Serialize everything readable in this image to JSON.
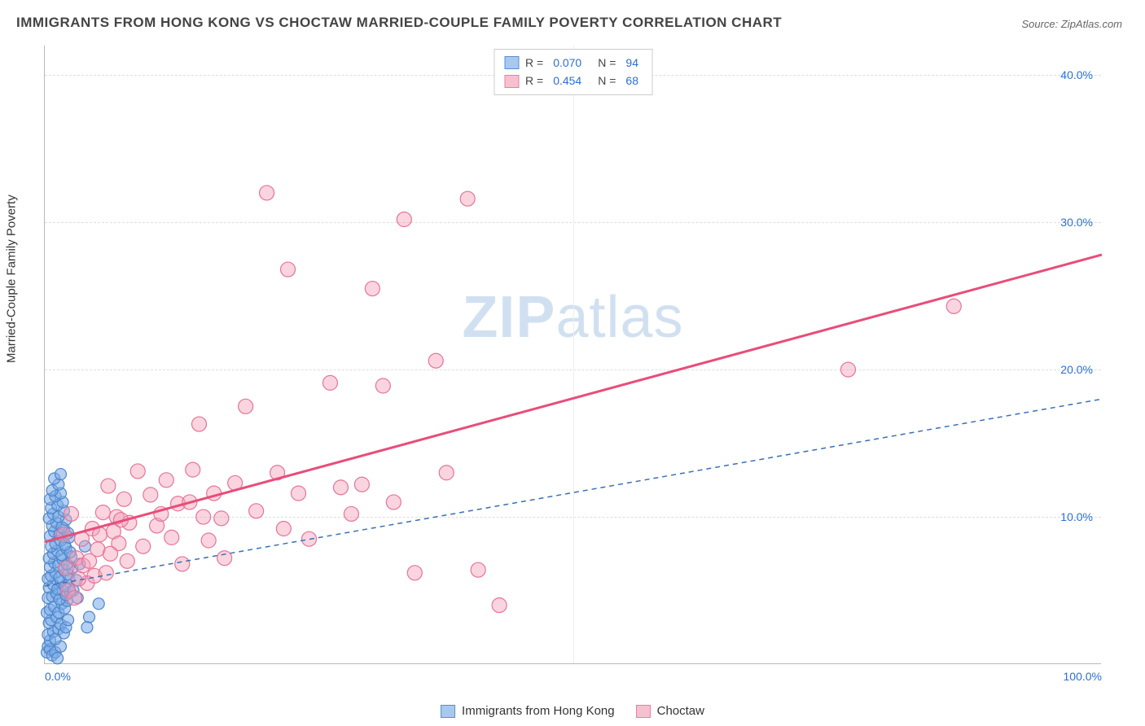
{
  "title": "IMMIGRANTS FROM HONG KONG VS CHOCTAW MARRIED-COUPLE FAMILY POVERTY CORRELATION CHART",
  "source": "Source: ZipAtlas.com",
  "ylabel": "Married-Couple Family Poverty",
  "watermark_strong": "ZIP",
  "watermark_light": "atlas",
  "chart": {
    "type": "scatter-with-regression",
    "background_color": "#ffffff",
    "grid_color": "#dddddd",
    "axis_color": "#bbbbbb",
    "xlim": [
      0,
      100
    ],
    "ylim": [
      0,
      42
    ],
    "xticks": [
      0,
      50,
      100
    ],
    "xtick_labels": [
      "0.0%",
      "",
      "100.0%"
    ],
    "yticks": [
      10,
      20,
      30,
      40
    ],
    "ytick_labels": [
      "10.0%",
      "20.0%",
      "30.0%",
      "40.0%"
    ],
    "tick_color": "#2b6fd6",
    "tick_fontsize": 14,
    "series": [
      {
        "name": "Immigrants from Hong Kong",
        "swatch_fill": "#a9c8ef",
        "swatch_border": "#5a8dd0",
        "marker_fill": "rgba(120,170,230,0.55)",
        "marker_stroke": "#4d86cc",
        "marker_radius": 7,
        "R": "0.070",
        "N": "94",
        "regression": {
          "x1": 0,
          "y1": 5.3,
          "x2": 100,
          "y2": 18.0,
          "color": "#3b6fb5",
          "width": 1.5,
          "dash": "6,5"
        },
        "points": [
          [
            0.2,
            0.8
          ],
          [
            0.3,
            1.2
          ],
          [
            0.5,
            1.0
          ],
          [
            0.7,
            0.6
          ],
          [
            0.5,
            1.6
          ],
          [
            1.0,
            0.8
          ],
          [
            1.2,
            0.4
          ],
          [
            1.5,
            1.2
          ],
          [
            0.3,
            2.0
          ],
          [
            0.8,
            2.2
          ],
          [
            1.0,
            1.7
          ],
          [
            1.3,
            2.4
          ],
          [
            0.4,
            2.8
          ],
          [
            0.6,
            3.0
          ],
          [
            1.1,
            3.2
          ],
          [
            1.5,
            2.7
          ],
          [
            1.8,
            2.1
          ],
          [
            2.0,
            2.5
          ],
          [
            2.2,
            3.0
          ],
          [
            0.2,
            3.5
          ],
          [
            0.5,
            3.7
          ],
          [
            0.9,
            3.9
          ],
          [
            1.3,
            3.5
          ],
          [
            1.6,
            4.1
          ],
          [
            1.9,
            3.8
          ],
          [
            2.1,
            4.3
          ],
          [
            0.3,
            4.5
          ],
          [
            0.7,
            4.6
          ],
          [
            1.1,
            4.8
          ],
          [
            1.4,
            4.4
          ],
          [
            1.7,
            5.0
          ],
          [
            2.0,
            4.7
          ],
          [
            2.4,
            4.9
          ],
          [
            0.4,
            5.2
          ],
          [
            0.8,
            5.4
          ],
          [
            1.2,
            5.1
          ],
          [
            1.5,
            5.6
          ],
          [
            1.9,
            5.3
          ],
          [
            2.3,
            5.8
          ],
          [
            2.7,
            5.0
          ],
          [
            0.3,
            5.8
          ],
          [
            0.6,
            6.0
          ],
          [
            1.0,
            6.2
          ],
          [
            1.4,
            5.9
          ],
          [
            1.8,
            6.4
          ],
          [
            2.2,
            6.1
          ],
          [
            2.6,
            6.5
          ],
          [
            3.0,
            5.7
          ],
          [
            0.5,
            6.6
          ],
          [
            0.9,
            6.9
          ],
          [
            1.3,
            6.7
          ],
          [
            1.7,
            7.1
          ],
          [
            2.1,
            6.8
          ],
          [
            2.5,
            7.3
          ],
          [
            0.4,
            7.2
          ],
          [
            0.8,
            7.5
          ],
          [
            1.2,
            7.7
          ],
          [
            1.6,
            7.4
          ],
          [
            2.0,
            7.9
          ],
          [
            2.4,
            7.6
          ],
          [
            0.6,
            8.0
          ],
          [
            1.0,
            8.2
          ],
          [
            1.5,
            8.4
          ],
          [
            1.9,
            8.1
          ],
          [
            2.3,
            8.6
          ],
          [
            0.5,
            8.7
          ],
          [
            0.9,
            9.0
          ],
          [
            1.4,
            8.8
          ],
          [
            1.8,
            9.2
          ],
          [
            2.2,
            8.9
          ],
          [
            0.7,
            9.4
          ],
          [
            1.1,
            9.6
          ],
          [
            1.6,
            9.3
          ],
          [
            2.0,
            9.8
          ],
          [
            0.4,
            9.9
          ],
          [
            0.8,
            10.2
          ],
          [
            1.3,
            10.0
          ],
          [
            1.8,
            10.4
          ],
          [
            0.6,
            10.6
          ],
          [
            1.2,
            10.8
          ],
          [
            1.7,
            11.0
          ],
          [
            0.5,
            11.2
          ],
          [
            1.0,
            11.4
          ],
          [
            1.5,
            11.6
          ],
          [
            0.7,
            11.8
          ],
          [
            1.3,
            12.2
          ],
          [
            0.9,
            12.6
          ],
          [
            1.5,
            12.9
          ],
          [
            4.2,
            3.2
          ],
          [
            5.1,
            4.1
          ],
          [
            4.0,
            2.5
          ],
          [
            3.3,
            6.8
          ],
          [
            3.8,
            8.0
          ],
          [
            3.1,
            4.5
          ]
        ]
      },
      {
        "name": "Choctaw",
        "swatch_fill": "#f6c1cf",
        "swatch_border": "#e97ea0",
        "marker_fill": "rgba(244,160,185,0.45)",
        "marker_stroke": "#e77499",
        "marker_radius": 9,
        "R": "0.454",
        "N": "68",
        "regression": {
          "x1": 0,
          "y1": 8.3,
          "x2": 100,
          "y2": 27.8,
          "color": "#e84d7a",
          "width": 3,
          "dash": ""
        },
        "points": [
          [
            2,
            6.5
          ],
          [
            3,
            7.2
          ],
          [
            3.5,
            8.5
          ],
          [
            4,
            5.5
          ],
          [
            4.5,
            9.2
          ],
          [
            5,
            7.8
          ],
          [
            5.5,
            10.3
          ],
          [
            6,
            12.1
          ],
          [
            6.5,
            9.0
          ],
          [
            7,
            8.2
          ],
          [
            7.5,
            11.2
          ],
          [
            8,
            9.6
          ],
          [
            8.8,
            13.1
          ],
          [
            9.3,
            8.0
          ],
          [
            10,
            11.5
          ],
          [
            10.6,
            9.4
          ],
          [
            11,
            10.2
          ],
          [
            11.5,
            12.5
          ],
          [
            12,
            8.6
          ],
          [
            12.6,
            10.9
          ],
          [
            13,
            6.8
          ],
          [
            13.7,
            11.0
          ],
          [
            14,
            13.2
          ],
          [
            14.6,
            16.3
          ],
          [
            15,
            10.0
          ],
          [
            15.5,
            8.4
          ],
          [
            16,
            11.6
          ],
          [
            16.7,
            9.9
          ],
          [
            17,
            7.2
          ],
          [
            18,
            12.3
          ],
          [
            19,
            17.5
          ],
          [
            20,
            10.4
          ],
          [
            21,
            32.0
          ],
          [
            22,
            13.0
          ],
          [
            22.6,
            9.2
          ],
          [
            23,
            26.8
          ],
          [
            24,
            11.6
          ],
          [
            25,
            8.5
          ],
          [
            27,
            19.1
          ],
          [
            28,
            12.0
          ],
          [
            29,
            10.2
          ],
          [
            30,
            12.2
          ],
          [
            31,
            25.5
          ],
          [
            32,
            18.9
          ],
          [
            33,
            11.0
          ],
          [
            34,
            30.2
          ],
          [
            35,
            6.2
          ],
          [
            37,
            20.6
          ],
          [
            38,
            13.0
          ],
          [
            40,
            31.6
          ],
          [
            41,
            6.4
          ],
          [
            43,
            4.0
          ],
          [
            2.2,
            5.0
          ],
          [
            2.8,
            4.5
          ],
          [
            3.2,
            5.8
          ],
          [
            3.6,
            6.7
          ],
          [
            4.2,
            7.0
          ],
          [
            4.7,
            6.0
          ],
          [
            5.2,
            8.8
          ],
          [
            5.8,
            6.2
          ],
          [
            6.2,
            7.5
          ],
          [
            6.8,
            10.0
          ],
          [
            7.2,
            9.8
          ],
          [
            7.8,
            7.0
          ],
          [
            76,
            20.0
          ],
          [
            86,
            24.3
          ],
          [
            1.8,
            8.8
          ],
          [
            2.5,
            10.2
          ]
        ]
      }
    ]
  },
  "legend_top_label_R": "R =",
  "legend_top_label_N": "N =",
  "legend_bottom": [
    {
      "label": "Immigrants from Hong Kong",
      "swatch_fill": "#a9c8ef",
      "swatch_border": "#5a8dd0"
    },
    {
      "label": "Choctaw",
      "swatch_fill": "#f6c1cf",
      "swatch_border": "#e97ea0"
    }
  ]
}
